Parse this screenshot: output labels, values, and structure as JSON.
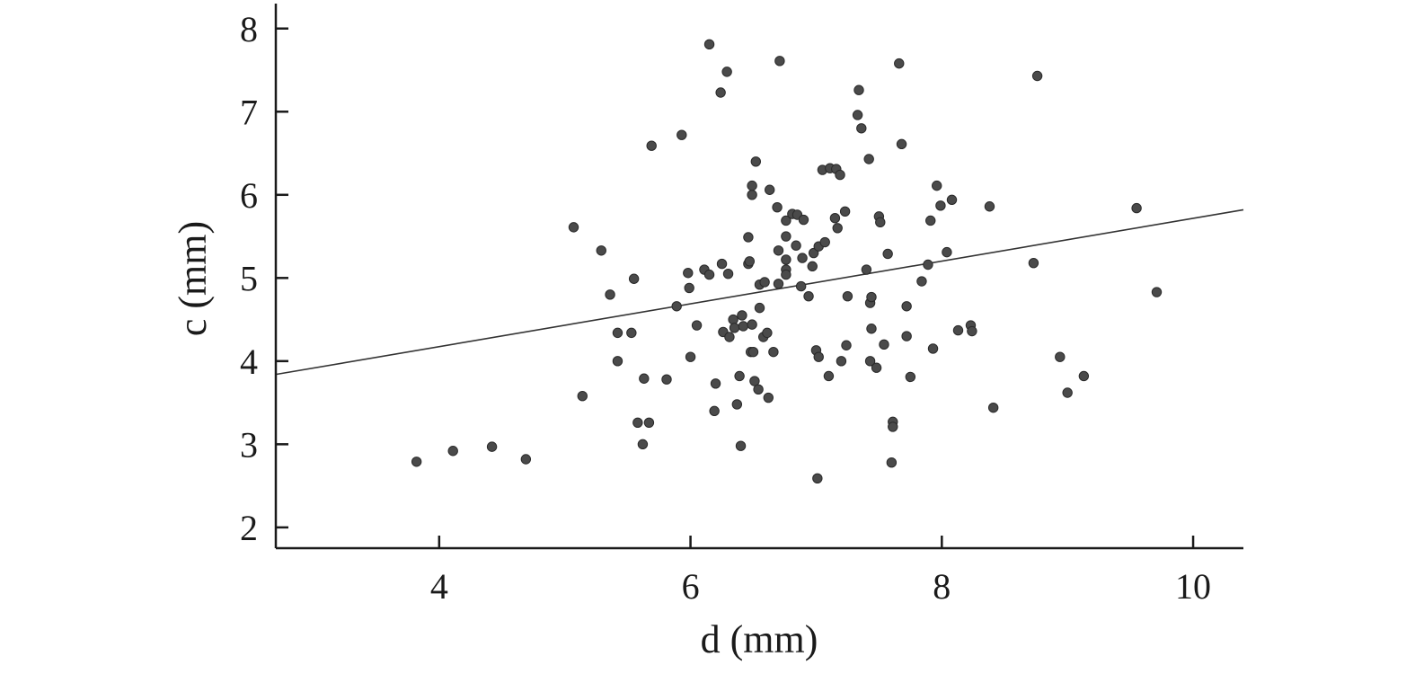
{
  "chart_data": {
    "type": "scatter",
    "title": "",
    "xlabel": "d (mm)",
    "ylabel": "c (mm)",
    "xlim": [
      2.7,
      10.4
    ],
    "ylim": [
      1.75,
      8.3
    ],
    "xticks": [
      4,
      6,
      8,
      10
    ],
    "yticks": [
      2,
      3,
      4,
      5,
      6,
      7,
      8
    ],
    "grid": false,
    "colors": {
      "point": "#4a4a4a",
      "line": "#333333",
      "axis": "#1a1a1a"
    },
    "trendline": {
      "x": [
        2.7,
        10.4
      ],
      "y": [
        3.84,
        5.82
      ]
    },
    "points": [
      {
        "x": 3.82,
        "y": 2.79
      },
      {
        "x": 4.11,
        "y": 2.92
      },
      {
        "x": 4.42,
        "y": 2.97
      },
      {
        "x": 4.69,
        "y": 2.82
      },
      {
        "x": 5.07,
        "y": 5.61
      },
      {
        "x": 5.14,
        "y": 3.58
      },
      {
        "x": 5.29,
        "y": 5.33
      },
      {
        "x": 5.36,
        "y": 4.8
      },
      {
        "x": 5.42,
        "y": 4.34
      },
      {
        "x": 5.42,
        "y": 4.0
      },
      {
        "x": 5.53,
        "y": 4.34
      },
      {
        "x": 5.55,
        "y": 4.99
      },
      {
        "x": 5.58,
        "y": 3.26
      },
      {
        "x": 5.62,
        "y": 3.0
      },
      {
        "x": 5.63,
        "y": 3.79
      },
      {
        "x": 5.67,
        "y": 3.26
      },
      {
        "x": 5.69,
        "y": 6.59
      },
      {
        "x": 5.81,
        "y": 3.78
      },
      {
        "x": 5.89,
        "y": 4.66
      },
      {
        "x": 5.93,
        "y": 6.72
      },
      {
        "x": 5.98,
        "y": 5.06
      },
      {
        "x": 5.99,
        "y": 4.88
      },
      {
        "x": 6.0,
        "y": 4.05
      },
      {
        "x": 6.05,
        "y": 4.43
      },
      {
        "x": 6.11,
        "y": 5.1
      },
      {
        "x": 6.15,
        "y": 5.04
      },
      {
        "x": 6.15,
        "y": 7.81
      },
      {
        "x": 6.19,
        "y": 3.4
      },
      {
        "x": 6.2,
        "y": 3.73
      },
      {
        "x": 6.24,
        "y": 7.23
      },
      {
        "x": 6.25,
        "y": 5.17
      },
      {
        "x": 6.26,
        "y": 4.35
      },
      {
        "x": 6.29,
        "y": 7.48
      },
      {
        "x": 6.3,
        "y": 5.05
      },
      {
        "x": 6.31,
        "y": 4.29
      },
      {
        "x": 6.34,
        "y": 4.5
      },
      {
        "x": 6.35,
        "y": 4.4
      },
      {
        "x": 6.37,
        "y": 3.48
      },
      {
        "x": 6.39,
        "y": 3.82
      },
      {
        "x": 6.4,
        "y": 2.98
      },
      {
        "x": 6.41,
        "y": 4.55
      },
      {
        "x": 6.42,
        "y": 4.42
      },
      {
        "x": 6.46,
        "y": 5.49
      },
      {
        "x": 6.46,
        "y": 5.17
      },
      {
        "x": 6.47,
        "y": 5.2
      },
      {
        "x": 6.48,
        "y": 4.11
      },
      {
        "x": 6.49,
        "y": 6.0
      },
      {
        "x": 6.49,
        "y": 4.44
      },
      {
        "x": 6.49,
        "y": 6.11
      },
      {
        "x": 6.5,
        "y": 4.11
      },
      {
        "x": 6.51,
        "y": 3.76
      },
      {
        "x": 6.52,
        "y": 6.4
      },
      {
        "x": 6.54,
        "y": 3.66
      },
      {
        "x": 6.55,
        "y": 4.92
      },
      {
        "x": 6.55,
        "y": 4.64
      },
      {
        "x": 6.58,
        "y": 4.29
      },
      {
        "x": 6.59,
        "y": 4.95
      },
      {
        "x": 6.61,
        "y": 4.34
      },
      {
        "x": 6.62,
        "y": 3.56
      },
      {
        "x": 6.63,
        "y": 6.06
      },
      {
        "x": 6.66,
        "y": 4.11
      },
      {
        "x": 6.69,
        "y": 5.85
      },
      {
        "x": 6.7,
        "y": 5.33
      },
      {
        "x": 6.71,
        "y": 7.61
      },
      {
        "x": 6.7,
        "y": 4.93
      },
      {
        "x": 6.76,
        "y": 5.69
      },
      {
        "x": 6.76,
        "y": 5.5
      },
      {
        "x": 6.76,
        "y": 5.22
      },
      {
        "x": 6.76,
        "y": 5.1
      },
      {
        "x": 6.76,
        "y": 5.04
      },
      {
        "x": 6.81,
        "y": 5.77
      },
      {
        "x": 6.84,
        "y": 5.39
      },
      {
        "x": 6.85,
        "y": 5.76
      },
      {
        "x": 6.88,
        "y": 4.9
      },
      {
        "x": 6.89,
        "y": 5.24
      },
      {
        "x": 6.9,
        "y": 5.7
      },
      {
        "x": 6.94,
        "y": 4.78
      },
      {
        "x": 6.97,
        "y": 5.14
      },
      {
        "x": 6.98,
        "y": 5.3
      },
      {
        "x": 7.0,
        "y": 4.13
      },
      {
        "x": 7.01,
        "y": 2.59
      },
      {
        "x": 7.02,
        "y": 4.05
      },
      {
        "x": 7.02,
        "y": 5.38
      },
      {
        "x": 7.05,
        "y": 6.3
      },
      {
        "x": 7.07,
        "y": 5.43
      },
      {
        "x": 7.1,
        "y": 3.82
      },
      {
        "x": 7.11,
        "y": 6.32
      },
      {
        "x": 7.15,
        "y": 5.72
      },
      {
        "x": 7.16,
        "y": 6.31
      },
      {
        "x": 7.17,
        "y": 5.6
      },
      {
        "x": 7.19,
        "y": 6.24
      },
      {
        "x": 7.2,
        "y": 4.0
      },
      {
        "x": 7.23,
        "y": 5.8
      },
      {
        "x": 7.24,
        "y": 4.19
      },
      {
        "x": 7.25,
        "y": 4.78
      },
      {
        "x": 7.33,
        "y": 6.96
      },
      {
        "x": 7.34,
        "y": 7.26
      },
      {
        "x": 7.36,
        "y": 6.8
      },
      {
        "x": 7.4,
        "y": 5.1
      },
      {
        "x": 7.42,
        "y": 6.43
      },
      {
        "x": 7.43,
        "y": 4.7
      },
      {
        "x": 7.43,
        "y": 4.0
      },
      {
        "x": 7.44,
        "y": 4.77
      },
      {
        "x": 7.44,
        "y": 4.39
      },
      {
        "x": 7.48,
        "y": 3.92
      },
      {
        "x": 7.5,
        "y": 5.74
      },
      {
        "x": 7.51,
        "y": 5.67
      },
      {
        "x": 7.54,
        "y": 4.2
      },
      {
        "x": 7.57,
        "y": 5.29
      },
      {
        "x": 7.6,
        "y": 2.78
      },
      {
        "x": 7.61,
        "y": 3.27
      },
      {
        "x": 7.61,
        "y": 3.21
      },
      {
        "x": 7.66,
        "y": 7.58
      },
      {
        "x": 7.68,
        "y": 6.61
      },
      {
        "x": 7.72,
        "y": 4.66
      },
      {
        "x": 7.72,
        "y": 4.3
      },
      {
        "x": 7.75,
        "y": 3.81
      },
      {
        "x": 7.84,
        "y": 4.96
      },
      {
        "x": 7.89,
        "y": 5.16
      },
      {
        "x": 7.91,
        "y": 5.69
      },
      {
        "x": 7.93,
        "y": 4.15
      },
      {
        "x": 7.96,
        "y": 6.11
      },
      {
        "x": 7.99,
        "y": 5.87
      },
      {
        "x": 8.04,
        "y": 5.31
      },
      {
        "x": 8.08,
        "y": 5.94
      },
      {
        "x": 8.13,
        "y": 4.37
      },
      {
        "x": 8.23,
        "y": 4.43
      },
      {
        "x": 8.24,
        "y": 4.36
      },
      {
        "x": 8.38,
        "y": 5.86
      },
      {
        "x": 8.41,
        "y": 3.44
      },
      {
        "x": 8.73,
        "y": 5.18
      },
      {
        "x": 8.76,
        "y": 7.43
      },
      {
        "x": 8.94,
        "y": 4.05
      },
      {
        "x": 9.0,
        "y": 3.62
      },
      {
        "x": 9.13,
        "y": 3.82
      },
      {
        "x": 9.55,
        "y": 5.84
      },
      {
        "x": 9.71,
        "y": 4.83
      }
    ]
  }
}
